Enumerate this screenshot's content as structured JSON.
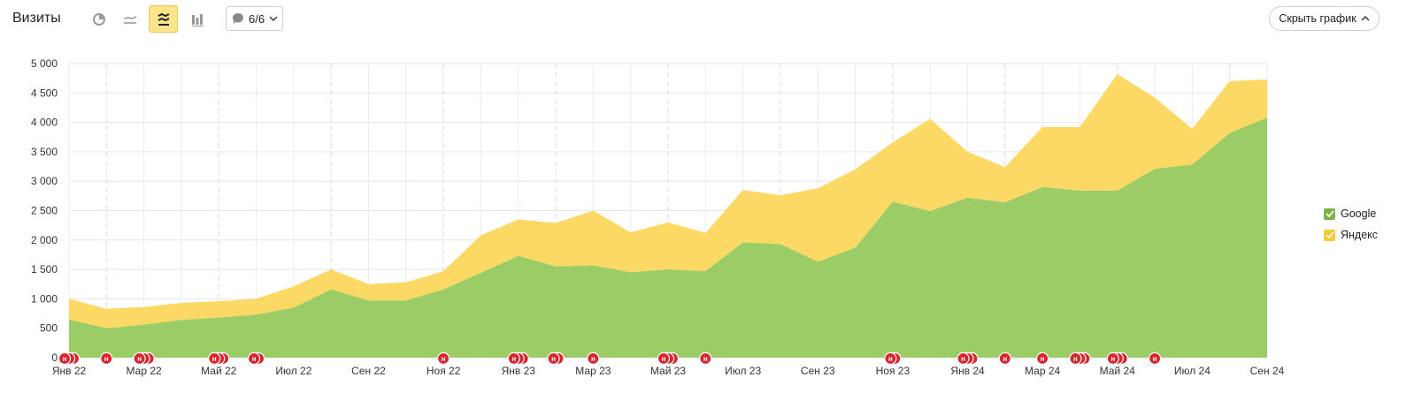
{
  "header": {
    "title": "Визиты",
    "notes_label": "6/6",
    "hide_chart_label": "Скрыть график"
  },
  "icons": {
    "pie": "pie-chart-icon",
    "line": "line-chart-icon",
    "stacked_area": "stacked-area-icon",
    "bars": "bar-chart-icon",
    "notes": "comment-icon",
    "chevron": "chevron-down-icon",
    "chevron_up": "chevron-up-icon",
    "marker": "note-marker-icon"
  },
  "colors": {
    "google": "#9ccc65",
    "yandex": "#fcd865",
    "marker": "#d9232d",
    "active_button": "#fde38a"
  },
  "chart_data": {
    "type": "area",
    "stacked": true,
    "x": [
      "Янв 22",
      "Фев 22",
      "Мар 22",
      "Апр 22",
      "Май 22",
      "Июн 22",
      "Июл 22",
      "Авг 22",
      "Сен 22",
      "Окт 22",
      "Ноя 22",
      "Дек 22",
      "Янв 23",
      "Фев 23",
      "Мар 23",
      "Апр 23",
      "Май 23",
      "Июн 23",
      "Июл 23",
      "Авг 23",
      "Сен 23",
      "Окт 23",
      "Ноя 23",
      "Дек 23",
      "Янв 24",
      "Фев 24",
      "Мар 24",
      "Апр 24",
      "Май 24",
      "Июн 24",
      "Июл 24",
      "Авг 24",
      "Сен 24"
    ],
    "x_tick_labels": [
      "Янв 22",
      "Мар 22",
      "Май 22",
      "Июл 22",
      "Сен 22",
      "Ноя 22",
      "Янв 23",
      "Мар 23",
      "Май 23",
      "Июл 23",
      "Сен 23",
      "Ноя 23",
      "Янв 24",
      "Мар 24",
      "Май 24",
      "Июл 24",
      "Сен 24"
    ],
    "y_ticks": [
      "0",
      "500",
      "1 000",
      "1 500",
      "2 000",
      "2 500",
      "3 000",
      "3 500",
      "4 000",
      "4 500",
      "5 000"
    ],
    "ylim": [
      0,
      5000
    ],
    "series": [
      {
        "name": "Google",
        "values": [
          650,
          500,
          560,
          640,
          680,
          730,
          850,
          1160,
          970,
          970,
          1160,
          1440,
          1730,
          1550,
          1570,
          1450,
          1500,
          1470,
          1960,
          1930,
          1630,
          1870,
          2650,
          2490,
          2720,
          2640,
          2900,
          2840,
          2840,
          3210,
          3280,
          3820,
          4080
        ]
      },
      {
        "name": "Яндекс",
        "values": [
          350,
          330,
          300,
          290,
          280,
          270,
          360,
          340,
          280,
          310,
          310,
          640,
          620,
          740,
          930,
          680,
          800,
          650,
          890,
          830,
          1250,
          1330,
          1010,
          1570,
          780,
          600,
          1020,
          1080,
          1980,
          1210,
          610,
          880,
          650
        ]
      }
    ],
    "legend": [
      "Google",
      "Яндекс"
    ],
    "legend_position": "right",
    "grid": true,
    "note_marker_label": "н",
    "note_markers": [
      {
        "month": 0,
        "count": 3
      },
      {
        "month": 1,
        "count": 1
      },
      {
        "month": 2,
        "count": 3
      },
      {
        "month": 4,
        "count": 3
      },
      {
        "month": 5,
        "count": 2
      },
      {
        "month": 10,
        "count": 1
      },
      {
        "month": 12,
        "count": 3
      },
      {
        "month": 13,
        "count": 2
      },
      {
        "month": 14,
        "count": 1
      },
      {
        "month": 16,
        "count": 3
      },
      {
        "month": 17,
        "count": 1
      },
      {
        "month": 22,
        "count": 2
      },
      {
        "month": 24,
        "count": 3
      },
      {
        "month": 25,
        "count": 1
      },
      {
        "month": 26,
        "count": 1
      },
      {
        "month": 27,
        "count": 3
      },
      {
        "month": 28,
        "count": 3
      },
      {
        "month": 29,
        "count": 1
      }
    ]
  }
}
